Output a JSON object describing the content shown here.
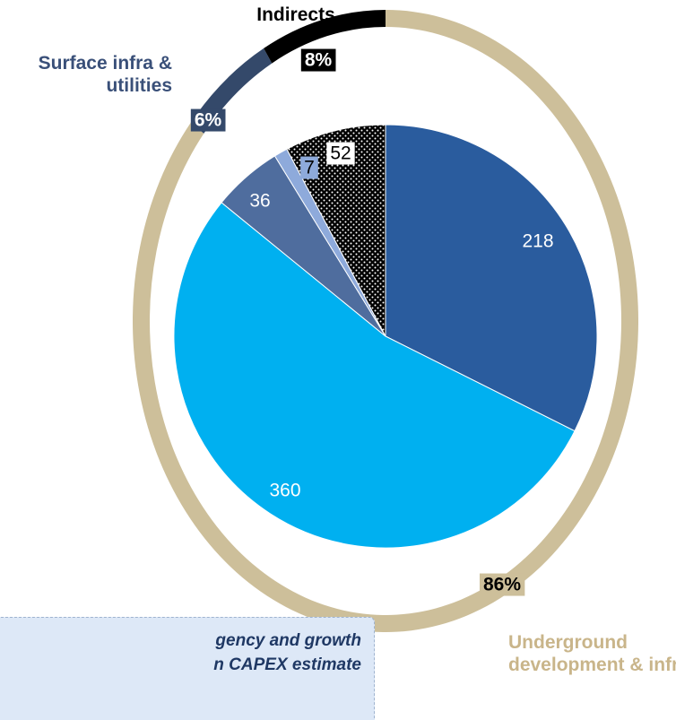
{
  "chart_data": [
    {
      "type": "pie",
      "values": [
        218,
        360,
        36,
        7,
        52
      ],
      "colors": [
        "#2a5c9e",
        "#00b0f0",
        "#4f6d9e",
        "#8eaadb",
        "#000000"
      ],
      "patterns": [
        null,
        null,
        null,
        null,
        "dots"
      ]
    },
    {
      "type": "donut",
      "categories": [
        "Underground development & infra",
        "Surface infra & utilities",
        "Indirects"
      ],
      "values": [
        86,
        6,
        8
      ],
      "value_labels": [
        "86%",
        "6%",
        "8%"
      ],
      "colors": [
        "#cdbf9a",
        "#34496a",
        "#000000"
      ],
      "annotations": [
        "gency and growth",
        "n CAPEX estimate"
      ]
    }
  ]
}
